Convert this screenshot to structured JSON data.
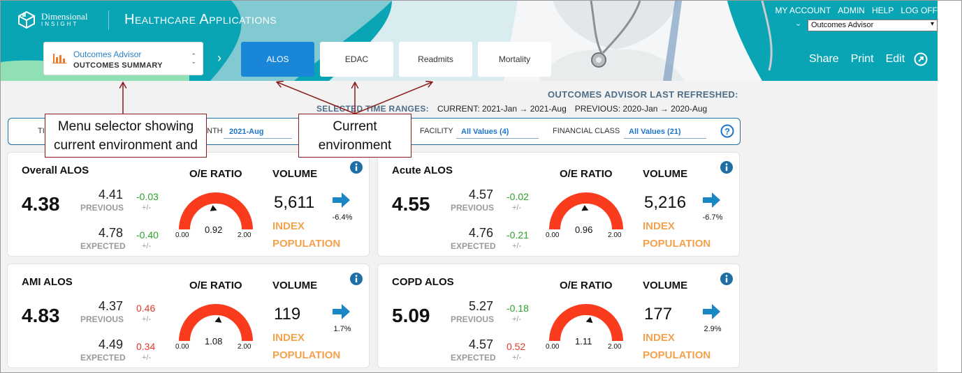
{
  "header": {
    "logo": {
      "line1": "Dimensional",
      "line2": "INSIGHT"
    },
    "app_title": "Healthcare Applications",
    "top_links": [
      "MY ACCOUNT",
      "ADMIN",
      "HELP",
      "LOG OFF"
    ],
    "environment_select": "Outcomes Advisor",
    "menu_selector": {
      "app": "Outcomes Advisor",
      "view": "OUTCOMES SUMMARY"
    },
    "tabs": [
      {
        "label": "ALOS",
        "active": true
      },
      {
        "label": "EDAC",
        "active": false
      },
      {
        "label": "Readmits",
        "active": false
      },
      {
        "label": "Mortality",
        "active": false
      }
    ],
    "actions": {
      "share": "Share",
      "print": "Print",
      "edit": "Edit"
    }
  },
  "refresh": {
    "last_refreshed_label": "OUTCOMES ADVISOR LAST REFRESHED:",
    "selected_ranges_label": "SELECTED TIME RANGES:",
    "current": "CURRENT: 2021-Jan → 2021-Aug",
    "previous": "PREVIOUS: 2020-Jan → 2020-Aug"
  },
  "filters": {
    "time_label": "TI",
    "month_label": "NTH",
    "month_value": "2021-Aug",
    "facility_label": "FACILITY",
    "facility_value": "All Values (4)",
    "financial_label": "FINANCIAL CLASS",
    "financial_value": "All Values (21)"
  },
  "annotations": {
    "menu_selector": "Menu selector showing current environment and",
    "current_env_line1": "Current",
    "current_env_line2": "environment"
  },
  "labels": {
    "previous": "PREVIOUS",
    "expected": "EXPECTED",
    "plusminus": "+/-",
    "oe_ratio": "O/E RATIO",
    "volume": "VOLUME",
    "index": "INDEX",
    "population": "POPULATION",
    "gauge_min": "0.00",
    "gauge_max": "2.00"
  },
  "cards": [
    {
      "title": "Overall ALOS",
      "value": "4.38",
      "previous": "4.41",
      "prev_delta": "-0.03",
      "expected": "4.78",
      "exp_delta": "-0.40",
      "oe": "0.92",
      "oe_value": 0.92,
      "volume": "5,611",
      "vol_change": "-6.4%"
    },
    {
      "title": "Acute ALOS",
      "value": "4.55",
      "previous": "4.57",
      "prev_delta": "-0.02",
      "expected": "4.76",
      "exp_delta": "-0.21",
      "oe": "0.96",
      "oe_value": 0.96,
      "volume": "5,216",
      "vol_change": "-6.7%"
    },
    {
      "title": "AMI ALOS",
      "value": "4.83",
      "previous": "4.37",
      "prev_delta": "0.46",
      "expected": "4.49",
      "exp_delta": "0.34",
      "oe": "1.08",
      "oe_value": 1.08,
      "volume": "119",
      "vol_change": "1.7%"
    },
    {
      "title": "COPD ALOS",
      "value": "5.09",
      "previous": "5.27",
      "prev_delta": "-0.18",
      "expected": "4.57",
      "exp_delta": "0.52",
      "oe": "1.11",
      "oe_value": 1.11,
      "volume": "177",
      "vol_change": "2.9%"
    }
  ],
  "colors": {
    "teal": "#0aa5b5",
    "active_tab": "#1a86d8",
    "gauge": "#fb3b1e",
    "trend_arrow": "#1a86c4",
    "positive": "#2aa12a",
    "negative": "#e03a2a",
    "index": "#f4a14c"
  }
}
